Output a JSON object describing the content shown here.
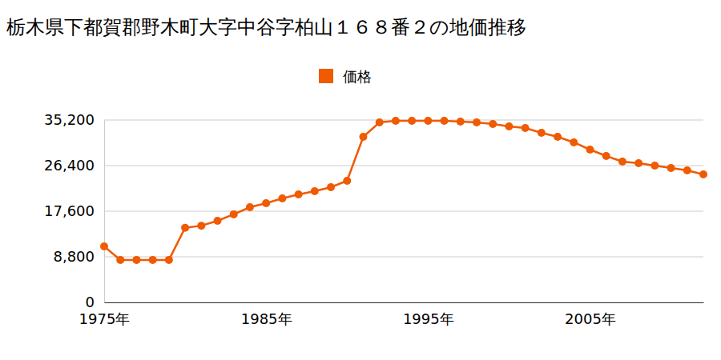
{
  "chart_data": {
    "type": "line",
    "title": "栃木県下都賀郡野木町大字中谷字柏山１６８番２の地価推移",
    "x": [
      1975,
      1976,
      1977,
      1978,
      1979,
      1980,
      1981,
      1982,
      1983,
      1984,
      1985,
      1986,
      1987,
      1988,
      1989,
      1990,
      1991,
      1992,
      1993,
      1994,
      1995,
      1996,
      1997,
      1998,
      1999,
      2000,
      2001,
      2002,
      2003,
      2004,
      2005,
      2006,
      2007,
      2008,
      2009,
      2010,
      2011,
      2012
    ],
    "series": [
      {
        "name": "価格",
        "color": "#f05a00",
        "marker": "circle",
        "values": [
          10800,
          8200,
          8200,
          8200,
          8200,
          14400,
          14800,
          15750,
          17000,
          18370,
          19150,
          20070,
          20840,
          21460,
          22230,
          23470,
          31960,
          34740,
          35050,
          35050,
          35050,
          35050,
          34890,
          34740,
          34430,
          33970,
          33660,
          32730,
          31960,
          30880,
          29490,
          28250,
          27170,
          26860,
          26400,
          25940,
          25470,
          24700
        ]
      }
    ],
    "xlim": [
      1975,
      2012
    ],
    "xticks": [
      {
        "value": 1975,
        "label": "1975年"
      },
      {
        "value": 1985,
        "label": "1985年"
      },
      {
        "value": 1995,
        "label": "1995年"
      },
      {
        "value": 2005,
        "label": "2005年"
      }
    ],
    "ylim": [
      0,
      35200
    ],
    "yticks": [
      0,
      {
        "value": 8800,
        "label": "8,800"
      },
      {
        "value": 17600,
        "label": "17,600"
      },
      {
        "value": 26400,
        "label": "26,400"
      },
      {
        "value": 35200,
        "label": "35,200"
      }
    ],
    "grid": true,
    "legend": "top"
  }
}
